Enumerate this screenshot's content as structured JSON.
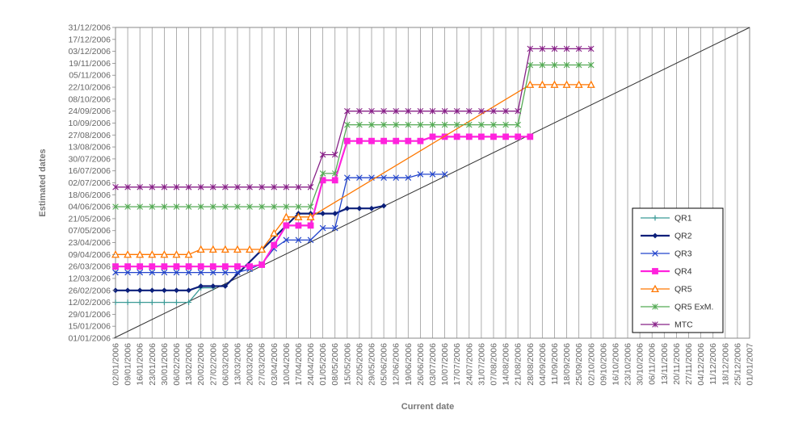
{
  "chart_data": {
    "type": "line",
    "xlabel": "Current date",
    "ylabel": "Estimated dates",
    "x_ticks": [
      "02/01/2006",
      "09/01/2006",
      "16/01/2006",
      "23/01/2006",
      "30/01/2006",
      "06/02/2006",
      "13/02/2006",
      "20/02/2006",
      "27/02/2006",
      "06/03/2006",
      "13/03/2006",
      "20/03/2006",
      "27/03/2006",
      "03/04/2006",
      "10/04/2006",
      "17/04/2006",
      "24/04/2006",
      "01/05/2006",
      "08/05/2006",
      "15/05/2006",
      "22/05/2006",
      "29/05/2006",
      "05/06/2006",
      "12/06/2006",
      "19/06/2006",
      "26/06/2006",
      "03/07/2006",
      "10/07/2006",
      "17/07/2006",
      "24/07/2006",
      "31/07/2006",
      "07/08/2006",
      "14/08/2006",
      "21/08/2006",
      "28/08/2006",
      "04/09/2006",
      "11/09/2006",
      "18/09/2006",
      "25/09/2006",
      "02/10/2006",
      "09/10/2006",
      "16/10/2006",
      "23/10/2006",
      "30/10/2006",
      "06/11/2006",
      "13/11/2006",
      "20/11/2006",
      "27/11/2006",
      "04/12/2006",
      "11/12/2006",
      "18/12/2006",
      "25/12/2006",
      "01/01/2007"
    ],
    "y_ticks": [
      "01/01/2006",
      "15/01/2006",
      "29/01/2006",
      "12/02/2006",
      "26/02/2006",
      "12/03/2006",
      "26/03/2006",
      "09/04/2006",
      "23/04/2006",
      "07/05/2006",
      "21/05/2006",
      "04/06/2006",
      "18/06/2006",
      "02/07/2006",
      "16/07/2006",
      "30/07/2006",
      "13/08/2006",
      "27/08/2006",
      "10/09/2006",
      "24/09/2006",
      "08/10/2006",
      "22/10/2006",
      "05/11/2006",
      "19/11/2006",
      "03/12/2006",
      "17/12/2006",
      "31/12/2006"
    ],
    "xlim": [
      "02/01/2006",
      "01/01/2007"
    ],
    "ylim": [
      "01/01/2006",
      "31/12/2006"
    ],
    "grid": "vertical",
    "legend_position": "right",
    "reference_line": {
      "from": [
        "01/01/2006",
        "01/01/2006"
      ],
      "to": [
        "01/01/2007",
        "31/12/2006"
      ],
      "color": "#333333"
    },
    "series": [
      {
        "name": "QR1",
        "color": "#3a9a96",
        "marker": "plus",
        "x": [
          "02/01/2006",
          "09/01/2006",
          "16/01/2006",
          "23/01/2006",
          "30/01/2006",
          "06/02/2006",
          "13/02/2006",
          "20/02/2006",
          "27/02/2006"
        ],
        "y": [
          "12/02/2006",
          "12/02/2006",
          "12/02/2006",
          "12/02/2006",
          "12/02/2006",
          "12/02/2006",
          "12/02/2006",
          "01/03/2006",
          "01/03/2006"
        ]
      },
      {
        "name": "QR2",
        "color": "#0b1f7a",
        "marker": "diamond",
        "x": [
          "02/01/2006",
          "09/01/2006",
          "16/01/2006",
          "23/01/2006",
          "30/01/2006",
          "06/02/2006",
          "13/02/2006",
          "20/02/2006",
          "27/02/2006",
          "06/03/2006",
          "17/04/2006",
          "24/04/2006",
          "01/05/2006",
          "08/05/2006",
          "15/05/2006",
          "22/05/2006",
          "29/05/2006",
          "05/06/2006"
        ],
        "y": [
          "26/02/2006",
          "26/02/2006",
          "26/02/2006",
          "26/02/2006",
          "26/02/2006",
          "26/02/2006",
          "26/02/2006",
          "03/03/2006",
          "03/03/2006",
          "03/03/2006",
          "27/05/2006",
          "27/05/2006",
          "27/05/2006",
          "27/05/2006",
          "02/06/2006",
          "02/06/2006",
          "02/06/2006",
          "05/06/2006"
        ]
      },
      {
        "name": "QR3",
        "color": "#2244cc",
        "marker": "x",
        "x": [
          "02/01/2006",
          "09/01/2006",
          "16/01/2006",
          "23/01/2006",
          "30/01/2006",
          "06/02/2006",
          "13/02/2006",
          "20/02/2006",
          "27/02/2006",
          "06/03/2006",
          "13/03/2006",
          "20/03/2006",
          "27/03/2006",
          "03/04/2006",
          "10/04/2006",
          "17/04/2006",
          "24/04/2006",
          "01/05/2006",
          "08/05/2006",
          "15/05/2006",
          "22/05/2006",
          "29/05/2006",
          "05/06/2006",
          "12/06/2006",
          "19/06/2006",
          "26/06/2006",
          "03/07/2006",
          "10/07/2006"
        ],
        "y": [
          "19/03/2006",
          "19/03/2006",
          "19/03/2006",
          "19/03/2006",
          "19/03/2006",
          "19/03/2006",
          "19/03/2006",
          "19/03/2006",
          "19/03/2006",
          "19/03/2006",
          "19/03/2006",
          "23/03/2006",
          "29/03/2006",
          "16/04/2006",
          "26/04/2006",
          "26/04/2006",
          "26/04/2006",
          "10/05/2006",
          "10/05/2006",
          "08/07/2006",
          "08/07/2006",
          "08/07/2006",
          "08/07/2006",
          "08/07/2006",
          "08/07/2006",
          "12/07/2006",
          "12/07/2006",
          "12/07/2006"
        ]
      },
      {
        "name": "QR4",
        "color": "#ff22dd",
        "marker": "square",
        "x": [
          "02/01/2006",
          "09/01/2006",
          "16/01/2006",
          "23/01/2006",
          "30/01/2006",
          "06/02/2006",
          "13/02/2006",
          "20/02/2006",
          "27/02/2006",
          "06/03/2006",
          "13/03/2006",
          "20/03/2006",
          "27/03/2006",
          "03/04/2006",
          "10/04/2006",
          "17/04/2006",
          "24/04/2006",
          "01/05/2006",
          "08/05/2006",
          "15/05/2006",
          "22/05/2006",
          "29/05/2006",
          "05/06/2006",
          "12/06/2006",
          "19/06/2006",
          "26/06/2006",
          "03/07/2006",
          "10/07/2006",
          "17/07/2006",
          "24/07/2006",
          "31/07/2006",
          "07/08/2006",
          "14/08/2006",
          "21/08/2006",
          "28/08/2006"
        ],
        "y": [
          "26/03/2006",
          "26/03/2006",
          "26/03/2006",
          "26/03/2006",
          "26/03/2006",
          "26/03/2006",
          "26/03/2006",
          "26/03/2006",
          "26/03/2006",
          "26/03/2006",
          "26/03/2006",
          "26/03/2006",
          "28/03/2006",
          "20/04/2006",
          "13/05/2006",
          "13/05/2006",
          "13/05/2006",
          "05/07/2006",
          "05/07/2006",
          "20/08/2006",
          "20/08/2006",
          "20/08/2006",
          "20/08/2006",
          "20/08/2006",
          "20/08/2006",
          "20/08/2006",
          "25/08/2006",
          "25/08/2006",
          "25/08/2006",
          "25/08/2006",
          "25/08/2006",
          "25/08/2006",
          "25/08/2006",
          "25/08/2006",
          "25/08/2006"
        ]
      },
      {
        "name": "QR5",
        "color": "#ff7700",
        "marker": "triangle",
        "x": [
          "02/01/2006",
          "09/01/2006",
          "16/01/2006",
          "23/01/2006",
          "30/01/2006",
          "06/02/2006",
          "13/02/2006",
          "20/02/2006",
          "27/02/2006",
          "06/03/2006",
          "13/03/2006",
          "20/03/2006",
          "27/03/2006",
          "03/04/2006",
          "10/04/2006",
          "17/04/2006",
          "24/04/2006",
          "28/08/2006",
          "04/09/2006",
          "11/09/2006",
          "18/09/2006",
          "25/09/2006",
          "02/10/2006"
        ],
        "y": [
          "09/04/2006",
          "09/04/2006",
          "09/04/2006",
          "09/04/2006",
          "09/04/2006",
          "09/04/2006",
          "09/04/2006",
          "15/04/2006",
          "15/04/2006",
          "15/04/2006",
          "15/04/2006",
          "15/04/2006",
          "15/04/2006",
          "04/05/2006",
          "23/05/2006",
          "23/05/2006",
          "23/05/2006",
          "25/10/2006",
          "25/10/2006",
          "25/10/2006",
          "25/10/2006",
          "25/10/2006",
          "25/10/2006"
        ]
      },
      {
        "name": "QR5 ExM.",
        "color": "#55aa55",
        "marker": "asterisk",
        "x": [
          "02/01/2006",
          "09/01/2006",
          "16/01/2006",
          "23/01/2006",
          "30/01/2006",
          "06/02/2006",
          "13/02/2006",
          "20/02/2006",
          "27/02/2006",
          "06/03/2006",
          "13/03/2006",
          "20/03/2006",
          "27/03/2006",
          "03/04/2006",
          "10/04/2006",
          "17/04/2006",
          "24/04/2006",
          "01/05/2006",
          "08/05/2006",
          "15/05/2006",
          "22/05/2006",
          "29/05/2006",
          "05/06/2006",
          "12/06/2006",
          "19/06/2006",
          "26/06/2006",
          "03/07/2006",
          "10/07/2006",
          "17/07/2006",
          "24/07/2006",
          "31/07/2006",
          "07/08/2006",
          "14/08/2006",
          "21/08/2006",
          "28/08/2006",
          "04/09/2006",
          "11/09/2006",
          "18/09/2006",
          "25/09/2006",
          "02/10/2006"
        ],
        "y": [
          "04/06/2006",
          "04/06/2006",
          "04/06/2006",
          "04/06/2006",
          "04/06/2006",
          "04/06/2006",
          "04/06/2006",
          "04/06/2006",
          "04/06/2006",
          "04/06/2006",
          "04/06/2006",
          "04/06/2006",
          "04/06/2006",
          "04/06/2006",
          "04/06/2006",
          "04/06/2006",
          "04/06/2006",
          "13/07/2006",
          "13/07/2006",
          "08/09/2006",
          "08/09/2006",
          "08/09/2006",
          "08/09/2006",
          "08/09/2006",
          "08/09/2006",
          "08/09/2006",
          "08/09/2006",
          "08/09/2006",
          "08/09/2006",
          "08/09/2006",
          "08/09/2006",
          "08/09/2006",
          "08/09/2006",
          "08/09/2006",
          "17/11/2006",
          "17/11/2006",
          "17/11/2006",
          "17/11/2006",
          "17/11/2006",
          "17/11/2006"
        ]
      },
      {
        "name": "MTC",
        "color": "#882288",
        "marker": "asterisk",
        "x": [
          "02/01/2006",
          "09/01/2006",
          "16/01/2006",
          "23/01/2006",
          "30/01/2006",
          "06/02/2006",
          "13/02/2006",
          "20/02/2006",
          "27/02/2006",
          "06/03/2006",
          "13/03/2006",
          "20/03/2006",
          "27/03/2006",
          "03/04/2006",
          "10/04/2006",
          "17/04/2006",
          "24/04/2006",
          "01/05/2006",
          "08/05/2006",
          "15/05/2006",
          "22/05/2006",
          "29/05/2006",
          "05/06/2006",
          "12/06/2006",
          "19/06/2006",
          "26/06/2006",
          "03/07/2006",
          "10/07/2006",
          "17/07/2006",
          "24/07/2006",
          "31/07/2006",
          "07/08/2006",
          "14/08/2006",
          "21/08/2006",
          "28/08/2006",
          "04/09/2006",
          "11/09/2006",
          "18/09/2006",
          "25/09/2006",
          "02/10/2006"
        ],
        "y": [
          "27/06/2006",
          "27/06/2006",
          "27/06/2006",
          "27/06/2006",
          "27/06/2006",
          "27/06/2006",
          "27/06/2006",
          "27/06/2006",
          "27/06/2006",
          "27/06/2006",
          "27/06/2006",
          "27/06/2006",
          "27/06/2006",
          "27/06/2006",
          "27/06/2006",
          "27/06/2006",
          "27/06/2006",
          "04/08/2006",
          "04/08/2006",
          "24/09/2006",
          "24/09/2006",
          "24/09/2006",
          "24/09/2006",
          "24/09/2006",
          "24/09/2006",
          "24/09/2006",
          "24/09/2006",
          "24/09/2006",
          "24/09/2006",
          "24/09/2006",
          "24/09/2006",
          "24/09/2006",
          "24/09/2006",
          "24/09/2006",
          "06/12/2006",
          "06/12/2006",
          "06/12/2006",
          "06/12/2006",
          "06/12/2006",
          "06/12/2006"
        ]
      }
    ]
  }
}
